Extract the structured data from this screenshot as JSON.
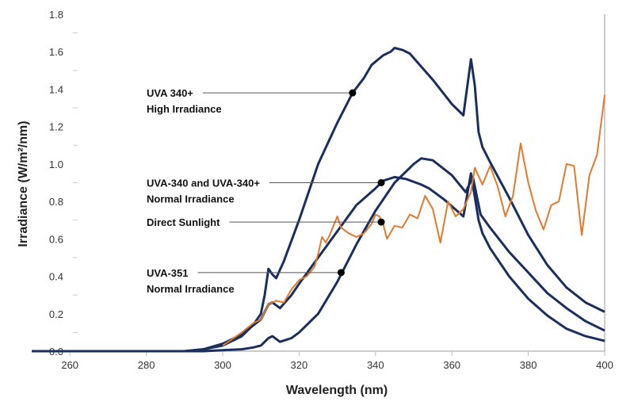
{
  "chart_data": {
    "type": "line",
    "xlabel": "Wavelength (nm)",
    "ylabel": "Irradiance (W/m²/nm)",
    "xlim": [
      250,
      400
    ],
    "ylim": [
      0,
      1.8
    ],
    "xticks": [
      260,
      280,
      300,
      320,
      340,
      360,
      380,
      400
    ],
    "yticks": [
      "0.0",
      "0.2",
      "0.4",
      "0.6",
      "0.8",
      "1.0",
      "1.2",
      "1.4",
      "1.6",
      "1.8"
    ],
    "grid": false,
    "colors": {
      "uva": "#1b2f5e",
      "sunlight": "#e07a2e"
    },
    "series": [
      {
        "key": "high",
        "color": "#1b2f5e",
        "points": [
          [
            250,
            0
          ],
          [
            290,
            0
          ],
          [
            295,
            0.01
          ],
          [
            300,
            0.03
          ],
          [
            305,
            0.08
          ],
          [
            308,
            0.14
          ],
          [
            310,
            0.2
          ],
          [
            311,
            0.3
          ],
          [
            312,
            0.44
          ],
          [
            313,
            0.41
          ],
          [
            314,
            0.39
          ],
          [
            316,
            0.48
          ],
          [
            320,
            0.7
          ],
          [
            325,
            1.0
          ],
          [
            330,
            1.22
          ],
          [
            334,
            1.38
          ],
          [
            337,
            1.46
          ],
          [
            339,
            1.53
          ],
          [
            342,
            1.58
          ],
          [
            344,
            1.6
          ],
          [
            345,
            1.62
          ],
          [
            347,
            1.61
          ],
          [
            349,
            1.59
          ],
          [
            352,
            1.52
          ],
          [
            355,
            1.45
          ],
          [
            360,
            1.32
          ],
          [
            363,
            1.26
          ],
          [
            365,
            1.56
          ],
          [
            366,
            1.42
          ],
          [
            367,
            1.17
          ],
          [
            368,
            1.09
          ],
          [
            370,
            1.01
          ],
          [
            375,
            0.82
          ],
          [
            380,
            0.62
          ],
          [
            385,
            0.46
          ],
          [
            390,
            0.34
          ],
          [
            395,
            0.26
          ],
          [
            400,
            0.21
          ]
        ]
      },
      {
        "key": "normal340",
        "color": "#1b2f5e",
        "points": [
          [
            250,
            0
          ],
          [
            290,
            0
          ],
          [
            295,
            0.01
          ],
          [
            300,
            0.04
          ],
          [
            305,
            0.09
          ],
          [
            310,
            0.17
          ],
          [
            312,
            0.25
          ],
          [
            313,
            0.26
          ],
          [
            315,
            0.23
          ],
          [
            318,
            0.3
          ],
          [
            320,
            0.36
          ],
          [
            325,
            0.5
          ],
          [
            330,
            0.64
          ],
          [
            335,
            0.78
          ],
          [
            340,
            0.87
          ],
          [
            342,
            0.91
          ],
          [
            345,
            0.93
          ],
          [
            348,
            0.92
          ],
          [
            352,
            0.89
          ],
          [
            354,
            0.87
          ],
          [
            358,
            0.81
          ],
          [
            363,
            0.72
          ],
          [
            365,
            0.95
          ],
          [
            367,
            0.7
          ],
          [
            368,
            0.63
          ],
          [
            370,
            0.55
          ],
          [
            375,
            0.4
          ],
          [
            380,
            0.28
          ],
          [
            385,
            0.19
          ],
          [
            390,
            0.12
          ],
          [
            395,
            0.08
          ],
          [
            400,
            0.055
          ]
        ]
      },
      {
        "key": "uva351",
        "color": "#1b2f5e",
        "points": [
          [
            250,
            0
          ],
          [
            295,
            0
          ],
          [
            300,
            0.005
          ],
          [
            305,
            0.01
          ],
          [
            308,
            0.02
          ],
          [
            310,
            0.03
          ],
          [
            312,
            0.07
          ],
          [
            313,
            0.08
          ],
          [
            315,
            0.05
          ],
          [
            318,
            0.07
          ],
          [
            320,
            0.1
          ],
          [
            325,
            0.2
          ],
          [
            330,
            0.37
          ],
          [
            335,
            0.57
          ],
          [
            340,
            0.75
          ],
          [
            345,
            0.9
          ],
          [
            350,
            1.0
          ],
          [
            352,
            1.03
          ],
          [
            355,
            1.02
          ],
          [
            360,
            0.94
          ],
          [
            363.6,
            0.85
          ],
          [
            365.5,
            0.93
          ],
          [
            367.5,
            0.73
          ],
          [
            370,
            0.66
          ],
          [
            375,
            0.53
          ],
          [
            380,
            0.42
          ],
          [
            385,
            0.31
          ],
          [
            390,
            0.23
          ],
          [
            395,
            0.16
          ],
          [
            400,
            0.11
          ]
        ]
      },
      {
        "key": "sunlight",
        "color": "#e07a2e",
        "points": [
          [
            300,
            0.03
          ],
          [
            305,
            0.1
          ],
          [
            308,
            0.15
          ],
          [
            310,
            0.17
          ],
          [
            312,
            0.25
          ],
          [
            314,
            0.27
          ],
          [
            316,
            0.26
          ],
          [
            318,
            0.33
          ],
          [
            320,
            0.38
          ],
          [
            322,
            0.4
          ],
          [
            324,
            0.45
          ],
          [
            325,
            0.52
          ],
          [
            326,
            0.61
          ],
          [
            327,
            0.58
          ],
          [
            328,
            0.62
          ],
          [
            330,
            0.72
          ],
          [
            331,
            0.66
          ],
          [
            333,
            0.63
          ],
          [
            335,
            0.61
          ],
          [
            337,
            0.63
          ],
          [
            339,
            0.68
          ],
          [
            340,
            0.73
          ],
          [
            341,
            0.72
          ],
          [
            342,
            0.68
          ],
          [
            343,
            0.6
          ],
          [
            345,
            0.67
          ],
          [
            347,
            0.66
          ],
          [
            349,
            0.73
          ],
          [
            351,
            0.71
          ],
          [
            353,
            0.83
          ],
          [
            355,
            0.76
          ],
          [
            357,
            0.58
          ],
          [
            359,
            0.8
          ],
          [
            361,
            0.72
          ],
          [
            363,
            0.76
          ],
          [
            365,
            0.85
          ],
          [
            366,
            0.98
          ],
          [
            368,
            0.89
          ],
          [
            370,
            0.99
          ],
          [
            372,
            0.88
          ],
          [
            374,
            0.72
          ],
          [
            376,
            0.83
          ],
          [
            378,
            1.11
          ],
          [
            380,
            0.9
          ],
          [
            382,
            0.75
          ],
          [
            384,
            0.65
          ],
          [
            386,
            0.78
          ],
          [
            388,
            0.8
          ],
          [
            390,
            1.0
          ],
          [
            392,
            0.99
          ],
          [
            394,
            0.62
          ],
          [
            396,
            0.94
          ],
          [
            398,
            1.05
          ],
          [
            400,
            1.37
          ]
        ]
      }
    ],
    "annotations": [
      {
        "lines": [
          "UVA 340+",
          "High Irradiance"
        ],
        "point": [
          334,
          1.38
        ]
      },
      {
        "lines": [
          "UVA-340 and UVA-340+",
          "Normal Irradiance"
        ],
        "point": [
          341.5,
          0.9
        ]
      },
      {
        "lines": [
          "Direct Sunlight"
        ],
        "point": [
          341.5,
          0.69
        ]
      },
      {
        "lines": [
          "UVA-351",
          "Normal Irradiance"
        ],
        "point": [
          331,
          0.42
        ]
      }
    ]
  }
}
